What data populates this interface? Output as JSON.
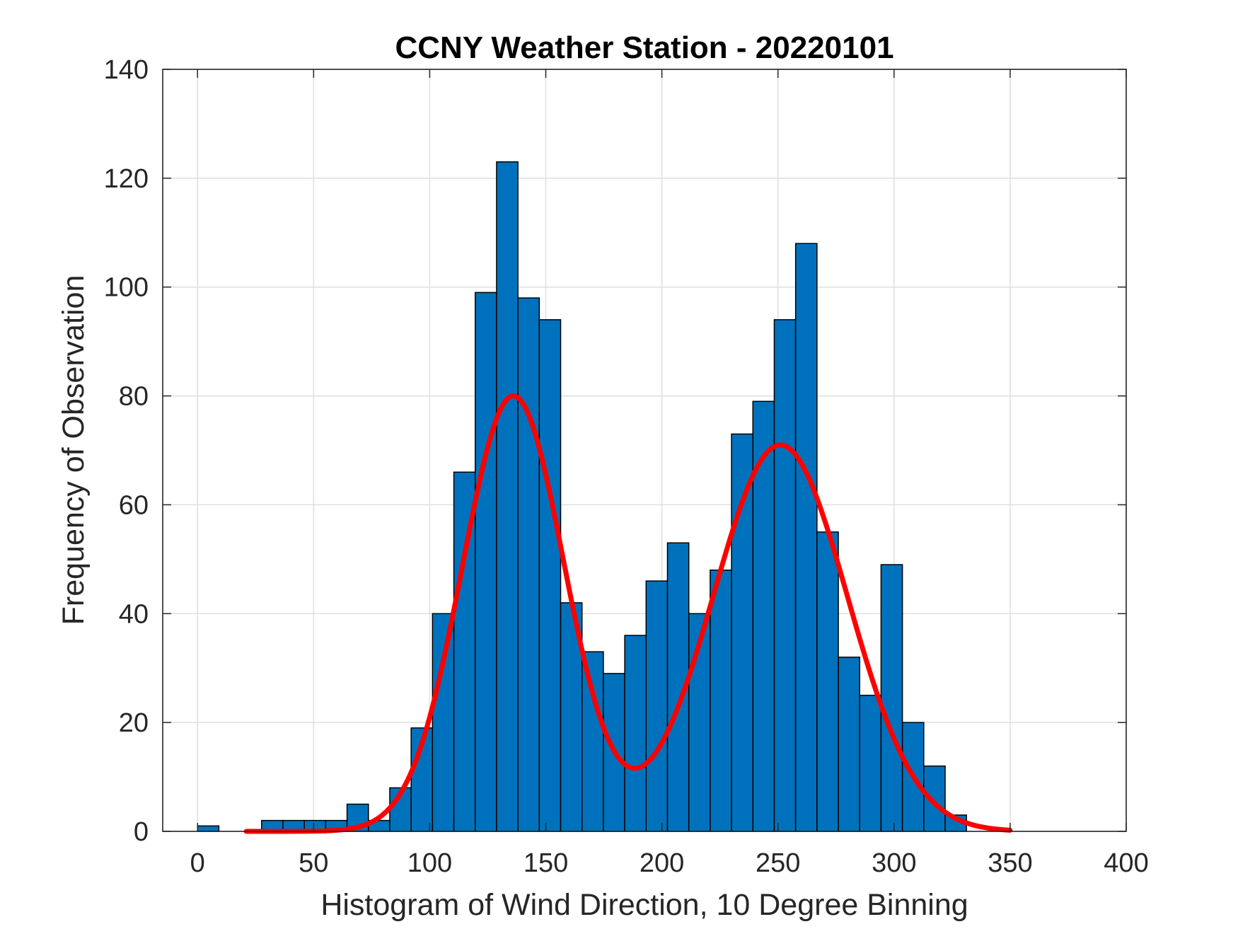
{
  "chart_data": {
    "type": "bar",
    "title": "CCNY Weather Station - 20220101",
    "xlabel": "Histogram of Wind Direction, 10 Degree Binning",
    "ylabel": "Frequency of Observation",
    "xlim": [
      -15,
      400
    ],
    "ylim": [
      0,
      140
    ],
    "x_ticks": [
      0,
      50,
      100,
      150,
      200,
      250,
      300,
      350,
      400
    ],
    "y_ticks": [
      0,
      20,
      40,
      60,
      80,
      100,
      120,
      140
    ],
    "x_tick_labels": [
      "0",
      "50",
      "100",
      "150",
      "200",
      "250",
      "300",
      "350",
      "400"
    ],
    "y_tick_labels": [
      "0",
      "20",
      "40",
      "60",
      "80",
      "100",
      "120",
      "140"
    ],
    "grid": true,
    "bin_width": 9.2,
    "bins": [
      {
        "x": 0,
        "value": 1
      },
      {
        "x": 27.6,
        "value": 2
      },
      {
        "x": 36.8,
        "value": 2
      },
      {
        "x": 46,
        "value": 2
      },
      {
        "x": 55.2,
        "value": 2
      },
      {
        "x": 64.4,
        "value": 5
      },
      {
        "x": 73.6,
        "value": 2
      },
      {
        "x": 82.8,
        "value": 8
      },
      {
        "x": 92,
        "value": 19
      },
      {
        "x": 101.2,
        "value": 40
      },
      {
        "x": 110.4,
        "value": 66
      },
      {
        "x": 119.6,
        "value": 99
      },
      {
        "x": 128.8,
        "value": 123
      },
      {
        "x": 138,
        "value": 98
      },
      {
        "x": 147.2,
        "value": 94
      },
      {
        "x": 156.4,
        "value": 42
      },
      {
        "x": 165.6,
        "value": 33
      },
      {
        "x": 174.8,
        "value": 29
      },
      {
        "x": 184,
        "value": 36
      },
      {
        "x": 193.2,
        "value": 46
      },
      {
        "x": 202.4,
        "value": 53
      },
      {
        "x": 211.6,
        "value": 40
      },
      {
        "x": 220.8,
        "value": 48
      },
      {
        "x": 230,
        "value": 73
      },
      {
        "x": 239.2,
        "value": 79
      },
      {
        "x": 248.4,
        "value": 94
      },
      {
        "x": 257.6,
        "value": 108
      },
      {
        "x": 266.8,
        "value": 55
      },
      {
        "x": 276,
        "value": 32
      },
      {
        "x": 285.2,
        "value": 25
      },
      {
        "x": 294.4,
        "value": 49
      },
      {
        "x": 303.6,
        "value": 20
      },
      {
        "x": 312.8,
        "value": 12
      },
      {
        "x": 322,
        "value": 3
      }
    ],
    "fit": {
      "name": "Gaussian mixture fit",
      "x_range": [
        21,
        350
      ],
      "components": [
        {
          "amplitude": 80,
          "mean": 136,
          "sigma": 22
        },
        {
          "amplitude": 71,
          "mean": 251,
          "sigma": 29
        }
      ]
    },
    "colors": {
      "bar_fill": "#0072BD",
      "bar_edge": "#000000",
      "fit_line": "#FF0000",
      "grid": "#DFDFDF",
      "axis": "#262626"
    }
  }
}
